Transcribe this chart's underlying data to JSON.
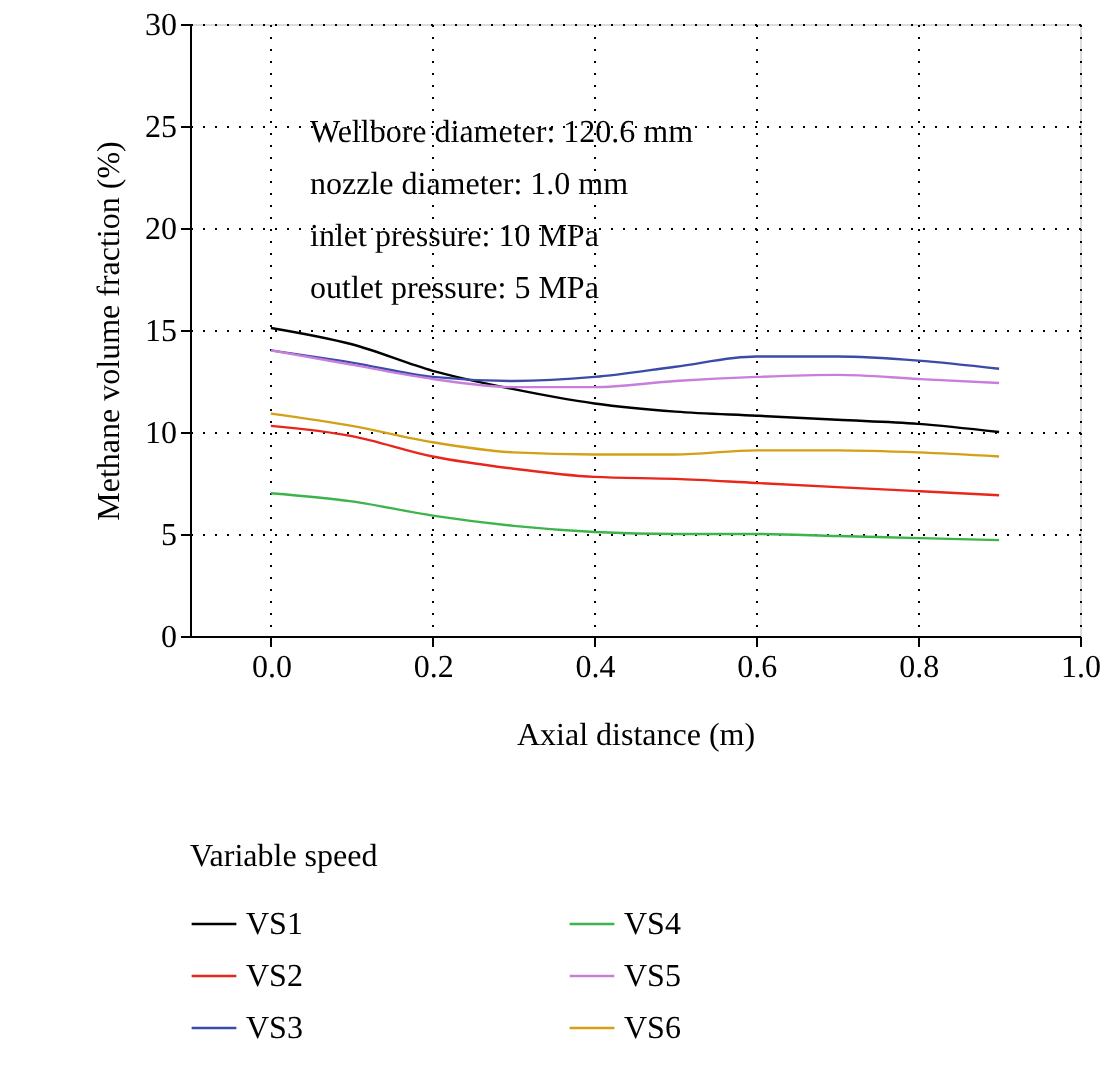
{
  "chart_data": {
    "type": "line",
    "xlabel": "Axial distance (m)",
    "ylabel": "Methane volume fraction (%)",
    "legend_title": "Variable speed",
    "x": [
      0,
      0.1,
      0.2,
      0.3,
      0.4,
      0.5,
      0.6,
      0.7,
      0.8,
      0.9
    ],
    "series": [
      {
        "name": "VS1",
        "color": "#000000",
        "values": [
          15.1,
          14.3,
          13.0,
          12.1,
          11.4,
          11.0,
          10.8,
          10.6,
          10.4,
          10.0
        ]
      },
      {
        "name": "VS2",
        "color": "#e8261c",
        "values": [
          10.3,
          9.8,
          8.8,
          8.2,
          7.8,
          7.7,
          7.5,
          7.3,
          7.1,
          6.9
        ]
      },
      {
        "name": "VS3",
        "color": "#3b4ba8",
        "values": [
          14.0,
          13.4,
          12.7,
          12.5,
          12.7,
          13.2,
          13.7,
          13.7,
          13.5,
          13.1
        ]
      },
      {
        "name": "VS4",
        "color": "#3cb44b",
        "values": [
          7.0,
          6.6,
          5.9,
          5.4,
          5.1,
          5.0,
          5.0,
          4.9,
          4.8,
          4.7
        ]
      },
      {
        "name": "VS5",
        "color": "#c77fdb",
        "values": [
          14.0,
          13.3,
          12.6,
          12.2,
          12.2,
          12.5,
          12.7,
          12.8,
          12.6,
          12.4
        ]
      },
      {
        "name": "VS6",
        "color": "#d4a017",
        "values": [
          10.9,
          10.3,
          9.5,
          9.0,
          8.9,
          8.9,
          9.1,
          9.1,
          9.0,
          8.8
        ]
      }
    ],
    "xlim": [
      -0.1,
      1.0
    ],
    "xticks": [
      {
        "value": 0,
        "label": "0.0"
      },
      {
        "value": 0.2,
        "label": "0.2"
      },
      {
        "value": 0.4,
        "label": "0.4"
      },
      {
        "value": 0.6,
        "label": "0.6"
      },
      {
        "value": 0.8,
        "label": "0.8"
      },
      {
        "value": 1.0,
        "label": "1.0"
      }
    ],
    "ylim": [
      0,
      30
    ],
    "yticks": [
      0,
      5,
      10,
      15,
      20,
      25,
      30
    ],
    "annotations": [
      "Wellbore diameter: 120.6 mm",
      "nozzle diameter: 1.0 mm",
      "inlet pressure: 10 MPa",
      "outlet pressure: 5 MPa"
    ],
    "grid": true,
    "legend": "bottom",
    "marker": "none",
    "line_style": "solid"
  }
}
